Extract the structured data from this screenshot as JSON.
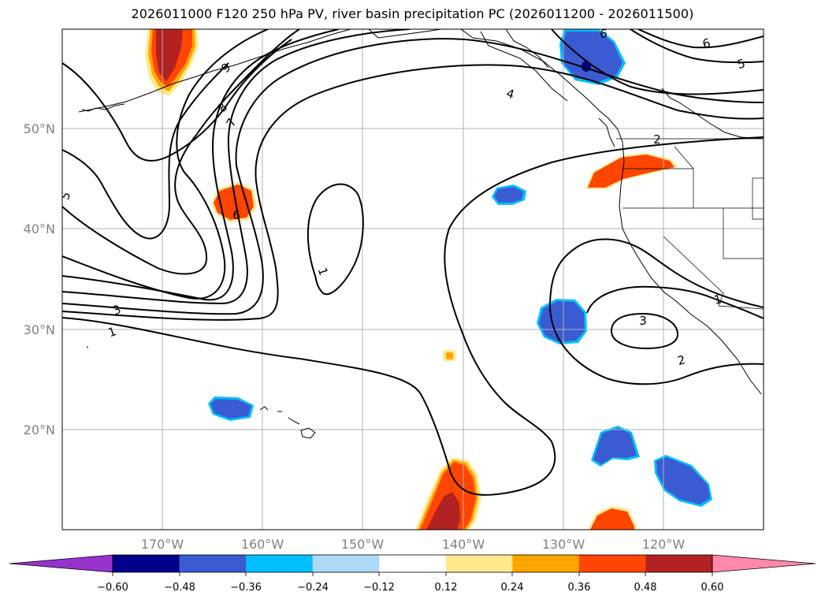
{
  "title": "2026011000 F120 250 hPa PV, river basin precipitation PC (2026011200 - 2026011500)",
  "map": {
    "projection": "PlateCarree",
    "extent": {
      "lon_min": -180,
      "lon_max": -110,
      "lat_min": 10,
      "lat_max": 60
    },
    "lat_labels": [
      "50°N",
      "40°N",
      "30°N",
      "20°N"
    ],
    "lon_labels": [
      "170°W",
      "160°W",
      "150°W",
      "140°W",
      "130°W",
      "120°W"
    ],
    "gridlines": true,
    "gridline_color": "#b0b0b0"
  },
  "pv_contours": {
    "units": "PVU",
    "labels": [
      "1",
      "1",
      "1",
      "2",
      "2",
      "3",
      "3",
      "4",
      "5",
      "5",
      "6",
      "6",
      "6",
      "7",
      "8",
      "9"
    ]
  },
  "colorbar": {
    "ticks": [
      "−0.60",
      "−0.48",
      "−0.36",
      "−0.24",
      "−0.12",
      "0.12",
      "0.24",
      "0.36",
      "0.48",
      "0.60"
    ],
    "colors": [
      "#9932cc",
      "#00008b",
      "#3a5bd1",
      "#00bfff",
      "#add8f6",
      "#ffffff",
      "#ffe98c",
      "#ffa500",
      "#ff4500",
      "#b22222",
      "#ff88aa"
    ],
    "extend": "both"
  },
  "palette": {
    "neg_strong": "#00008b",
    "neg": "#3a5bd1",
    "neg_edge": "#00bfff",
    "pos_edge": "#ffe98c",
    "pos_mid": "#ffa500",
    "pos": "#ff4500",
    "pos_strong": "#b22222"
  }
}
